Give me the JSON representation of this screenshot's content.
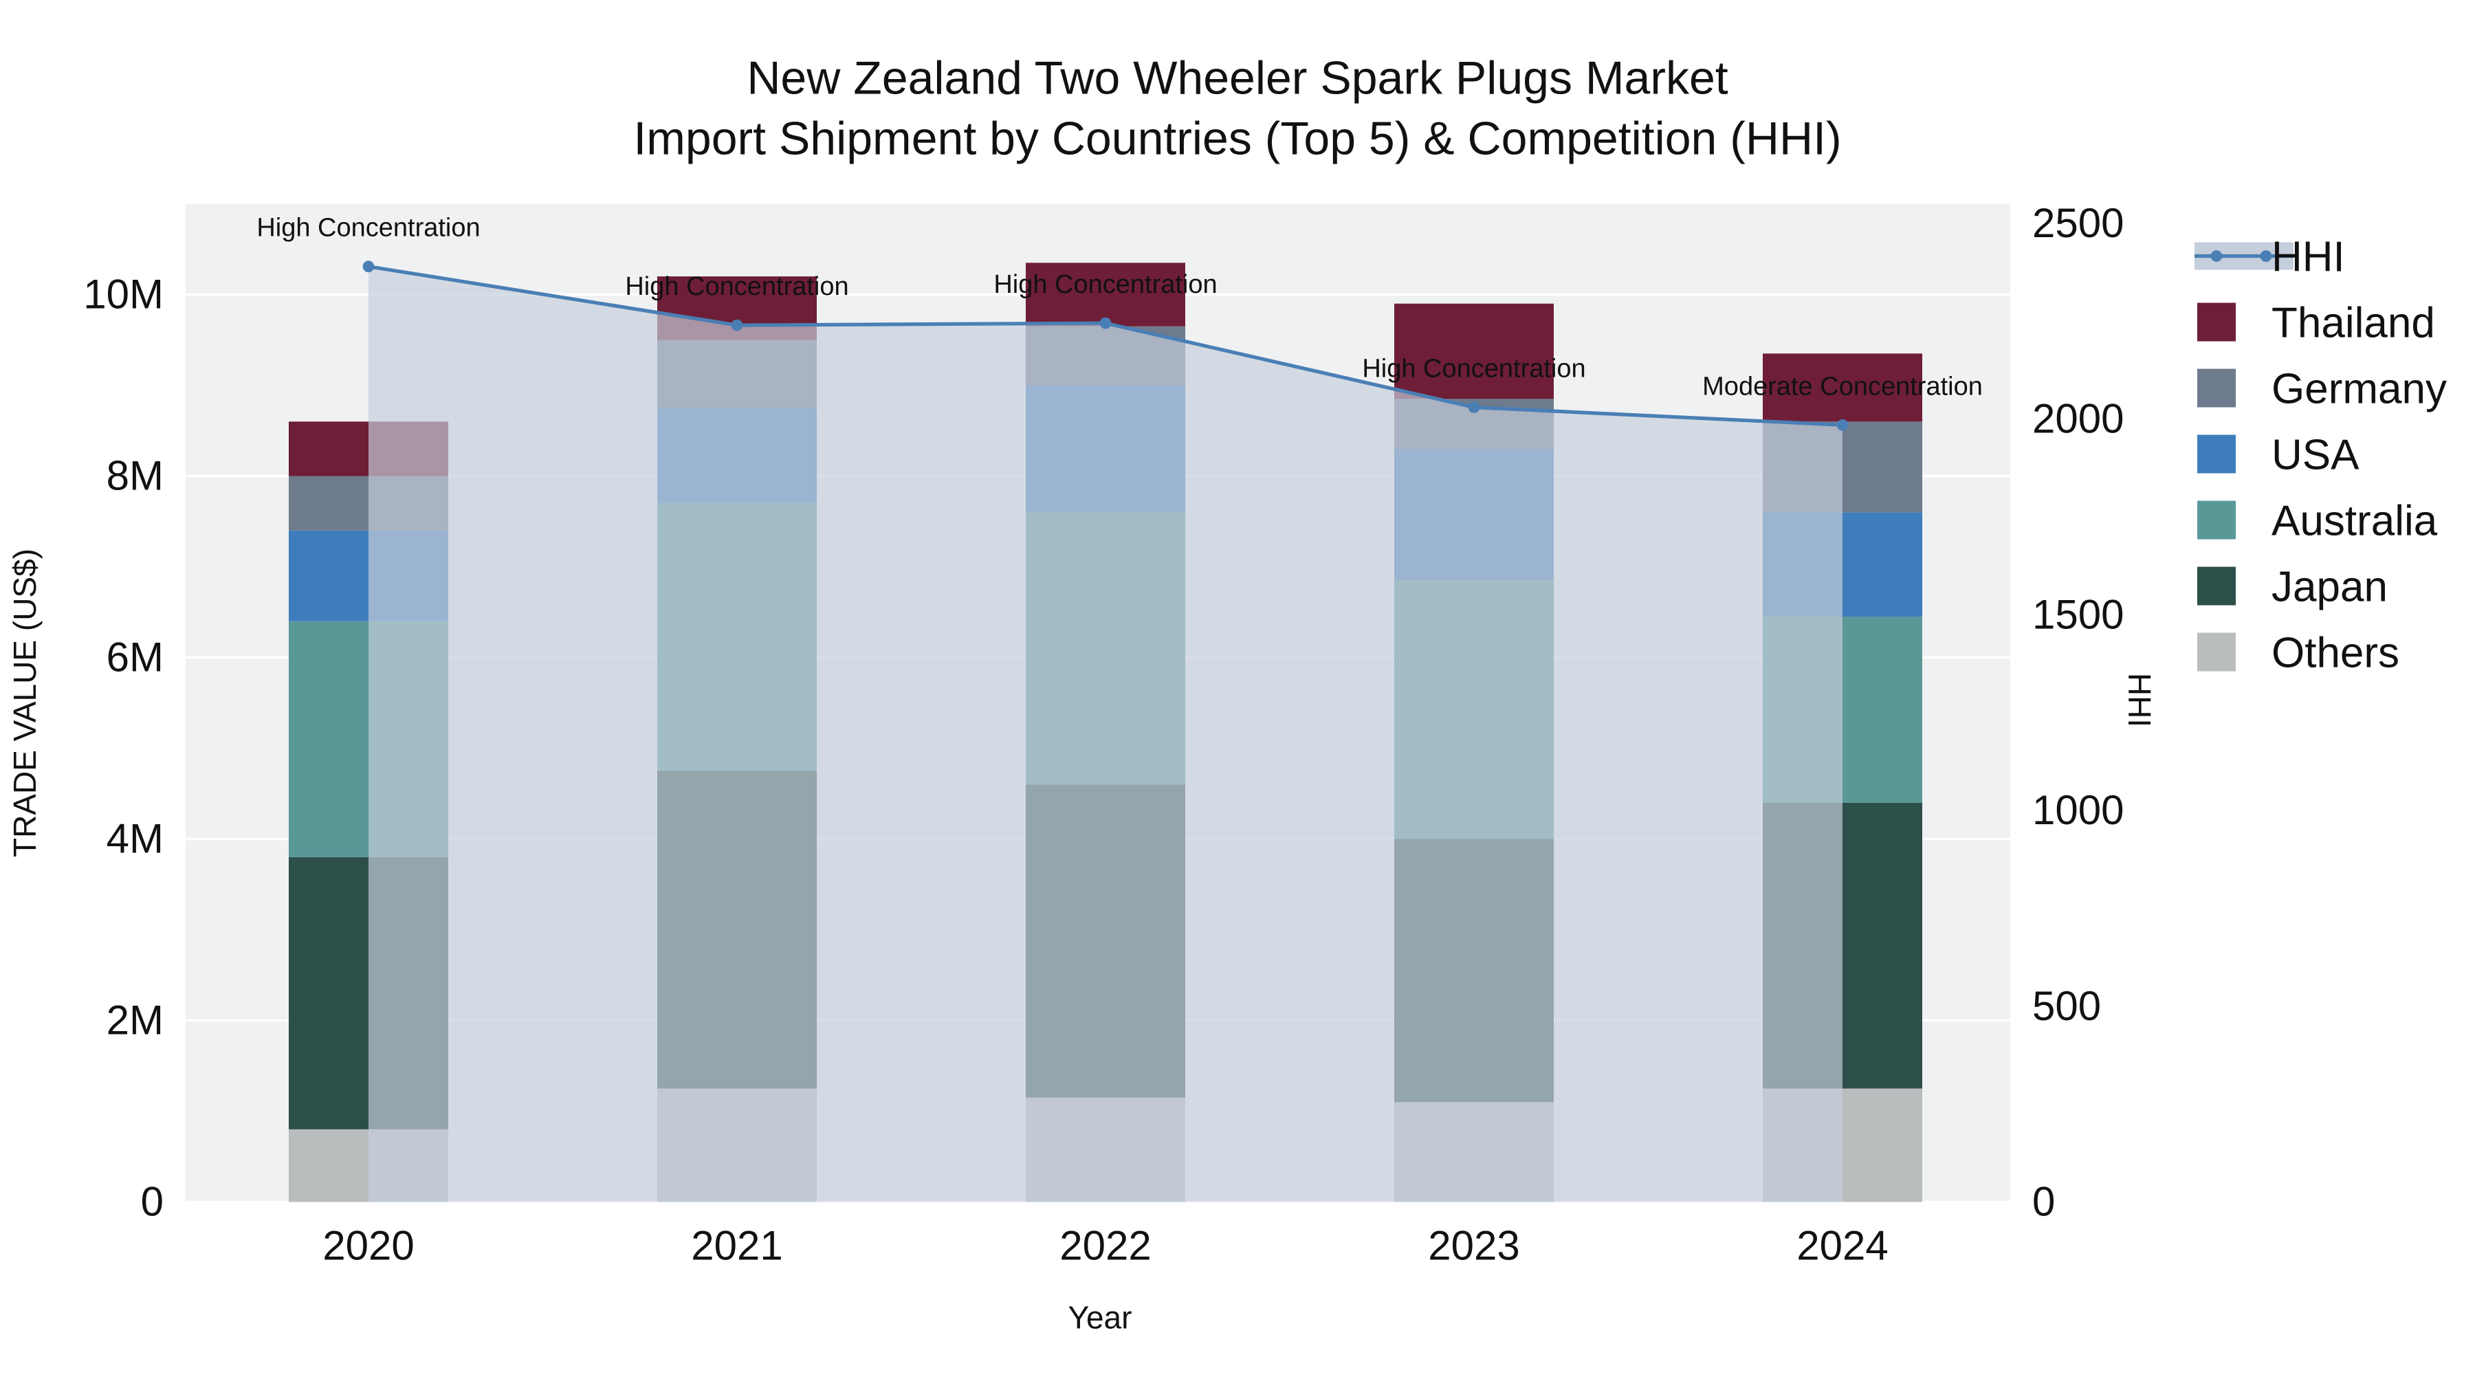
{
  "title": {
    "line1": "New Zealand Two Wheeler Spark Plugs Market",
    "line2": "Import Shipment by Countries (Top 5) & Competition (HHI)"
  },
  "axes": {
    "x_label": "Year",
    "y_left_label": "TRADE VALUE (US$)",
    "y_right_label": "HHI"
  },
  "legend": [
    {
      "label": "HHI",
      "type": "line",
      "color": "#4a7fb5",
      "band": "#c5cedb"
    },
    {
      "label": "Thailand",
      "type": "swatch",
      "color": "#6e1e37"
    },
    {
      "label": "Germany",
      "type": "swatch",
      "color": "#6e7b8c"
    },
    {
      "label": "USA",
      "type": "swatch",
      "color": "#3e7dbc"
    },
    {
      "label": "Australia",
      "type": "swatch",
      "color": "#5a9898"
    },
    {
      "label": "Japan",
      "type": "swatch",
      "color": "#2d4f49"
    },
    {
      "label": "Others",
      "type": "swatch",
      "color": "#babdbe"
    }
  ],
  "chart_data": {
    "type": "bar",
    "subtype": "stacked-bar-with-line",
    "categories": [
      "2020",
      "2021",
      "2022",
      "2023",
      "2024"
    ],
    "xlabel": "Year",
    "ylabel_left": "TRADE VALUE (US$)",
    "ylabel_right": "HHI",
    "y_left_max": 11000000,
    "y_right_max": 2550,
    "y_left_tick_values": [
      0,
      2000000,
      4000000,
      6000000,
      8000000,
      10000000
    ],
    "y_left_tick_labels": [
      "0",
      "2M",
      "4M",
      "6M",
      "8M",
      "10M"
    ],
    "y_right_tick_values": [
      0,
      500,
      1000,
      1500,
      2000,
      2500
    ],
    "y_right_tick_labels": [
      "0",
      "500",
      "1000",
      "1500",
      "2000",
      "2500"
    ],
    "grid": true,
    "legend_position": "right",
    "series": [
      {
        "name": "Others",
        "color": "#babdbe",
        "values": [
          800000,
          1250000,
          1150000,
          1100000,
          1250000
        ]
      },
      {
        "name": "Japan",
        "color": "#2d4f49",
        "values": [
          3000000,
          3500000,
          3450000,
          2900000,
          3150000
        ]
      },
      {
        "name": "Australia",
        "color": "#5a9898",
        "values": [
          2600000,
          2950000,
          3000000,
          2850000,
          2050000
        ]
      },
      {
        "name": "USA",
        "color": "#3e7dbc",
        "values": [
          1000000,
          1050000,
          1400000,
          1450000,
          1150000
        ]
      },
      {
        "name": "Germany",
        "color": "#6e7b8c",
        "values": [
          600000,
          750000,
          650000,
          550000,
          1000000
        ]
      },
      {
        "name": "Thailand",
        "color": "#6e1e37",
        "values": [
          600000,
          700000,
          700000,
          1050000,
          750000
        ]
      }
    ],
    "bar_totals": [
      8600000,
      10200000,
      10350000,
      9900000,
      9350000
    ],
    "line_series": {
      "name": "HHI",
      "color": "#4a7fb5",
      "fill_color": "#c5cedb",
      "fill_opacity": 0.68,
      "values": [
        2390,
        2240,
        2245,
        2030,
        1985
      ]
    },
    "annotations": [
      {
        "x": "2020",
        "label": "High Concentration"
      },
      {
        "x": "2021",
        "label": "High Concentration"
      },
      {
        "x": "2022",
        "label": "High Concentration"
      },
      {
        "x": "2023",
        "label": "High Concentration"
      },
      {
        "x": "2024",
        "label": "Moderate Concentration"
      }
    ]
  }
}
